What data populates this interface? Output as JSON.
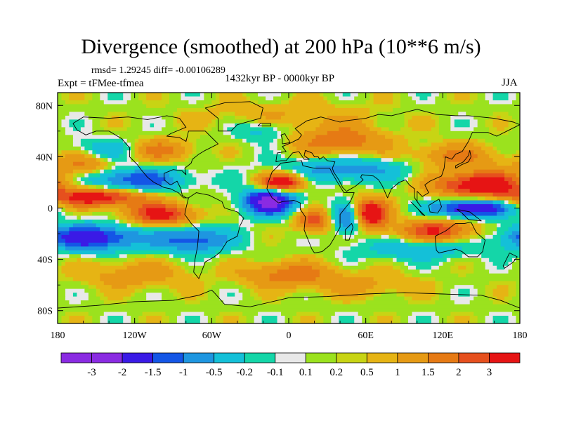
{
  "header": {
    "title": "Divergence (smoothed) at 200 hPa (10**6 m/s)",
    "stats": "rmsd= 1.29245 diff= -0.00106289",
    "experiment": "Expt = tFMee-tfmea",
    "period": "1432kyr BP - 0000kyr BP",
    "season": "JJA"
  },
  "chart_data": {
    "type": "heatmap",
    "title": "Divergence (smoothed) at 200 hPa (10**6 m/s)",
    "projection": "cylindrical equidistant",
    "x_range": [
      -180,
      180
    ],
    "y_range": [
      -90,
      90
    ],
    "x_ticks": [
      {
        "value": -180,
        "label": "180"
      },
      {
        "value": -120,
        "label": "120W"
      },
      {
        "value": -60,
        "label": "60W"
      },
      {
        "value": 0,
        "label": "0"
      },
      {
        "value": 60,
        "label": "60E"
      },
      {
        "value": 120,
        "label": "120E"
      },
      {
        "value": 180,
        "label": "180"
      }
    ],
    "y_ticks": [
      {
        "value": 80,
        "label": "80N"
      },
      {
        "value": 40,
        "label": "40N"
      },
      {
        "value": 0,
        "label": "0"
      },
      {
        "value": -40,
        "label": "40S"
      },
      {
        "value": -80,
        "label": "80S"
      }
    ],
    "colorbar": {
      "colors": [
        "#8a2be2",
        "#3a1ae6",
        "#1456e6",
        "#1e96e0",
        "#14c0d8",
        "#14d6a8",
        "#e8e8e8",
        "#9be21e",
        "#c8d414",
        "#e6b414",
        "#e69a14",
        "#e67a14",
        "#e6501e",
        "#e61414"
      ],
      "labels": [
        "-3",
        "-2",
        "-1.5",
        "-1",
        "-0.5",
        "-0.2",
        "-0.1",
        "0.1",
        "0.2",
        "0.5",
        "1",
        "1.5",
        "2",
        "3"
      ]
    },
    "field_features": [
      {
        "lon": -15,
        "lat": 5,
        "value": -3.4,
        "spread_lon": 14,
        "spread_lat": 7
      },
      {
        "lon": 143,
        "lat": 0,
        "value": -3.0,
        "spread_lon": 20,
        "spread_lat": 5
      },
      {
        "lon": -155,
        "lat": -23,
        "value": -2.6,
        "spread_lon": 26,
        "spread_lat": 7
      },
      {
        "lon": 48,
        "lat": -8,
        "value": -2.2,
        "spread_lon": 10,
        "spread_lat": 8
      },
      {
        "lon": -120,
        "lat": 22,
        "value": -1.9,
        "spread_lon": 28,
        "spread_lat": 6
      },
      {
        "lon": -75,
        "lat": -25,
        "value": -1.8,
        "spread_lon": 22,
        "spread_lat": 7
      },
      {
        "lon": 45,
        "lat": 30,
        "value": -1.3,
        "spread_lon": 35,
        "spread_lat": 7
      },
      {
        "lon": 100,
        "lat": -32,
        "value": -1.0,
        "spread_lon": 30,
        "spread_lat": 6
      },
      {
        "lon": -145,
        "lat": 45,
        "value": -1.0,
        "spread_lon": 20,
        "spread_lat": 6
      },
      {
        "lon": 62,
        "lat": -5,
        "value": 3.4,
        "spread_lon": 10,
        "spread_lat": 8
      },
      {
        "lon": -5,
        "lat": 20,
        "value": 3.0,
        "spread_lon": 12,
        "spread_lat": 5
      },
      {
        "lon": 150,
        "lat": 18,
        "value": 2.8,
        "spread_lon": 25,
        "spread_lat": 7
      },
      {
        "lon": -150,
        "lat": 8,
        "value": 2.5,
        "spread_lon": 25,
        "spread_lat": 5
      },
      {
        "lon": -100,
        "lat": -5,
        "value": 2.3,
        "spread_lon": 18,
        "spread_lat": 6
      },
      {
        "lon": 115,
        "lat": -18,
        "value": 2.1,
        "spread_lon": 20,
        "spread_lat": 6
      },
      {
        "lon": 20,
        "lat": -10,
        "value": 1.8,
        "spread_lon": 10,
        "spread_lat": 6
      },
      {
        "lon": 40,
        "lat": 52,
        "value": 1.4,
        "spread_lon": 25,
        "spread_lat": 8
      },
      {
        "lon": -100,
        "lat": 45,
        "value": 1.2,
        "spread_lon": 18,
        "spread_lat": 6
      },
      {
        "lon": 0,
        "lat": -52,
        "value": 1.3,
        "spread_lon": 25,
        "spread_lat": 7
      },
      {
        "lon": -160,
        "lat": 35,
        "value": 1.2,
        "spread_lon": 15,
        "spread_lat": 7
      },
      {
        "lon": 130,
        "lat": 40,
        "value": 1.1,
        "spread_lon": 25,
        "spread_lat": 7
      },
      {
        "lon": -120,
        "lat": -52,
        "value": 0.8,
        "spread_lon": 30,
        "spread_lat": 8
      },
      {
        "lon": 0,
        "lat": 72,
        "value": 0.5,
        "spread_lon": 50,
        "spread_lat": 8
      },
      {
        "lon": 60,
        "lat": -60,
        "value": 0.6,
        "spread_lon": 30,
        "spread_lat": 7
      },
      {
        "lon": -20,
        "lat": 60,
        "value": -0.8,
        "spread_lon": 15,
        "spread_lat": 6
      }
    ]
  }
}
